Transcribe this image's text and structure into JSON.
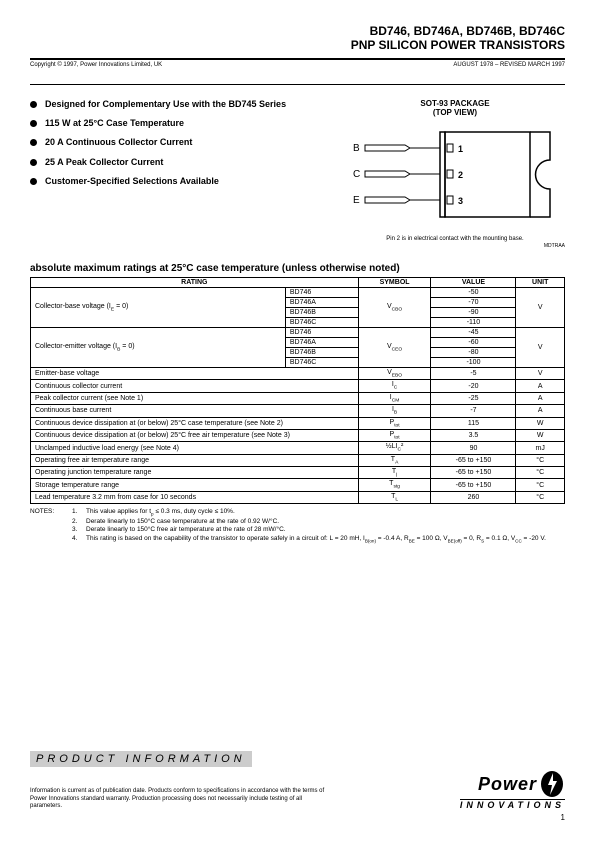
{
  "header": {
    "parts": "BD746, BD746A, BD746B, BD746C",
    "subtitle": "PNP SILICON POWER TRANSISTORS",
    "copyright": "Copyright © 1997, Power Innovations Limited, UK",
    "date": "AUGUST 1978 – REVISED MARCH 1997"
  },
  "bullets": [
    "Designed for Complementary Use with the BD745 Series",
    "115 W at 25°C Case Temperature",
    "20 A Continuous Collector Current",
    "25 A Peak Collector Current",
    "Customer-Specified Selections Available"
  ],
  "package": {
    "title1": "SOT-93 PACKAGE",
    "title2": "(TOP VIEW)",
    "pins": [
      "B",
      "C",
      "E"
    ],
    "pinNums": [
      "1",
      "2",
      "3"
    ],
    "note": "Pin 2 is in electrical contact with the mounting base.",
    "code": "MDTRAA"
  },
  "section_title": "absolute maximum ratings at 25°C case temperature (unless otherwise noted)",
  "table": {
    "headers": [
      "RATING",
      "SYMBOL",
      "VALUE",
      "UNIT"
    ],
    "rows": [
      {
        "rating": "Collector-base voltage (I<sub>E</sub> = 0)",
        "rowspan": 4,
        "variants": [
          "BD746",
          "BD746A",
          "BD746B",
          "BD746C"
        ],
        "symbol": "V<sub>CBO</sub>",
        "values": [
          "-50",
          "-70",
          "-90",
          "-110"
        ],
        "unit": "V"
      },
      {
        "rating": "Collector-emitter voltage (I<sub>B</sub> = 0)",
        "rowspan": 4,
        "variants": [
          "BD746",
          "BD746A",
          "BD746B",
          "BD746C"
        ],
        "symbol": "V<sub>CEO</sub>",
        "values": [
          "-45",
          "-60",
          "-80",
          "-100"
        ],
        "unit": "V"
      },
      {
        "rating": "Emitter-base voltage",
        "symbol": "V<sub>EBO</sub>",
        "value": "-5",
        "unit": "V"
      },
      {
        "rating": "Continuous collector current",
        "symbol": "I<sub>C</sub>",
        "value": "-20",
        "unit": "A"
      },
      {
        "rating": "Peak collector current (see Note 1)",
        "symbol": "I<sub>CM</sub>",
        "value": "-25",
        "unit": "A"
      },
      {
        "rating": "Continuous base current",
        "symbol": "I<sub>B</sub>",
        "value": "-7",
        "unit": "A"
      },
      {
        "rating": "Continuous device dissipation at (or below) 25°C case temperature (see Note 2)",
        "symbol": "P<sub>tot</sub>",
        "value": "115",
        "unit": "W"
      },
      {
        "rating": "Continuous device dissipation at (or below) 25°C free air temperature (see Note 3)",
        "symbol": "P<sub>tot</sub>",
        "value": "3.5",
        "unit": "W"
      },
      {
        "rating": "Unclamped inductive load energy (see Note 4)",
        "symbol": "½LI<sub>C</sub>²",
        "value": "90",
        "unit": "mJ"
      },
      {
        "rating": "Operating free air temperature range",
        "symbol": "T<sub>A</sub>",
        "value": "-65 to +150",
        "unit": "°C"
      },
      {
        "rating": "Operating junction temperature range",
        "symbol": "T<sub>j</sub>",
        "value": "-65 to +150",
        "unit": "°C"
      },
      {
        "rating": "Storage temperature range",
        "symbol": "T<sub>stg</sub>",
        "value": "-65 to +150",
        "unit": "°C"
      },
      {
        "rating": "Lead temperature 3.2 mm from case for 10 seconds",
        "symbol": "T<sub>L</sub>",
        "value": "260",
        "unit": "°C"
      }
    ]
  },
  "notes": [
    {
      "lbl": "NOTES:",
      "n": "1.",
      "text": "This value applies for t<sub>p</sub> ≤ 0.3 ms, duty cycle ≤ 10%."
    },
    {
      "lbl": "",
      "n": "2.",
      "text": "Derate linearly to 150°C  case temperature at the rate of 0.92 W/°C."
    },
    {
      "lbl": "",
      "n": "3.",
      "text": "Derate linearly to 150°C  free air temperature at the rate of 28 mW/°C."
    },
    {
      "lbl": "",
      "n": "4.",
      "text": "This rating is based on the capability of the transistor to operate safely in a circuit of: L = 20 mH, I<sub>B(on)</sub> = -0.4 A, R<sub>BE</sub> = 100 Ω, V<sub>BE(off)</sub> = 0, R<sub>S</sub> = 0.1 Ω, V<sub>CC</sub> = -20 V."
    }
  ],
  "footer": {
    "bar": "PRODUCT INFORMATION",
    "text": "Information is current as of publication date. Products conform to specifications in accordance with the terms of Power Innovations standard warranty. Production processing does not necessarily include testing of all parameters.",
    "logo1": "Power",
    "logo2": "INNOVATIONS",
    "page": "1"
  }
}
